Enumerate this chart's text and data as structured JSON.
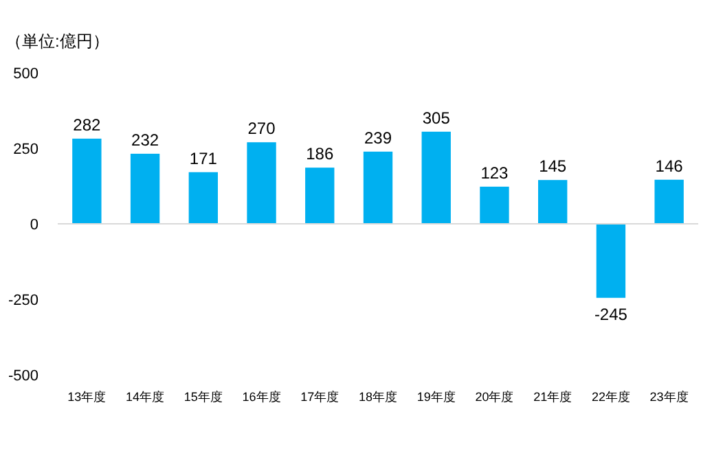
{
  "chart_data": {
    "type": "bar",
    "ylabel": "（単位:億円）",
    "categories": [
      "13年度",
      "14年度",
      "15年度",
      "16年度",
      "17年度",
      "18年度",
      "19年度",
      "20年度",
      "21年度",
      "22年度",
      "23年度"
    ],
    "values": [
      282,
      232,
      171,
      270,
      186,
      239,
      305,
      123,
      145,
      -245,
      146
    ],
    "color": "#00b0f0",
    "ylim": [
      -500,
      500
    ],
    "yticks": [
      -500,
      -250,
      0,
      250,
      500
    ],
    "data_labels": true
  }
}
